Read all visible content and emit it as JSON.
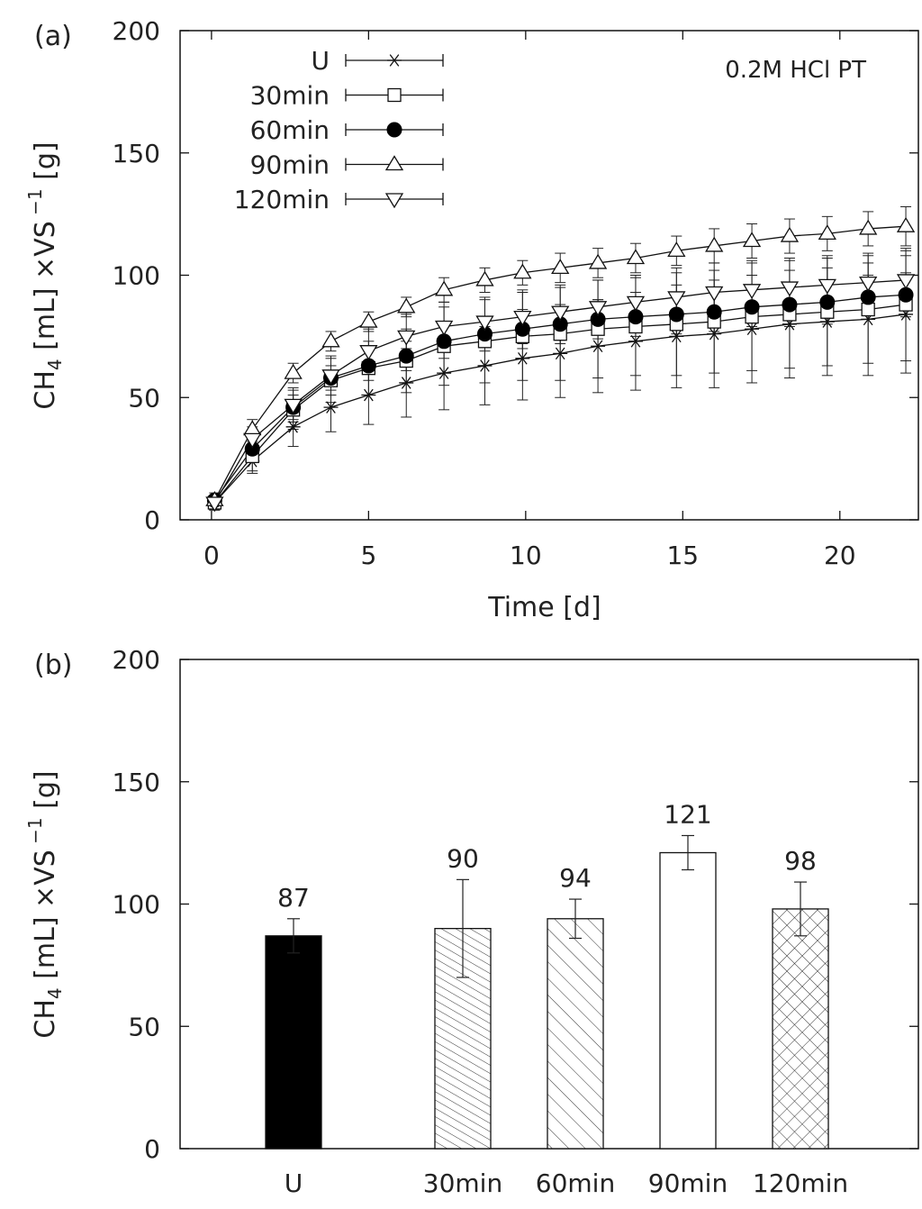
{
  "chart_data": [
    {
      "type": "line",
      "panel_label": "(a)",
      "annotation": "0.2M HCl PT",
      "xlabel": "Time [d]",
      "ylabel": {
        "main": "CH",
        "sub": "4",
        "mid": " [mL] ×VS",
        "sup": " −1",
        "tail": " [g]"
      },
      "xlim": [
        -1,
        22.5
      ],
      "ylim": [
        0,
        200
      ],
      "x_ticks": [
        0,
        5,
        10,
        15,
        20
      ],
      "y_ticks": [
        0,
        50,
        100,
        150,
        200
      ],
      "x": [
        0.1,
        1.3,
        2.6,
        3.8,
        5.0,
        6.2,
        7.4,
        8.7,
        9.9,
        11.1,
        12.3,
        13.5,
        14.8,
        16.0,
        17.2,
        18.4,
        19.6,
        20.9,
        22.1
      ],
      "series": [
        {
          "name": "U",
          "marker": "asterisk",
          "values": [
            7,
            24,
            38,
            46,
            51,
            56,
            60,
            63,
            66,
            68,
            71,
            73,
            75,
            76,
            78,
            80,
            81,
            82,
            84
          ],
          "error": [
            3,
            5,
            8,
            10,
            12,
            14,
            15,
            16,
            17,
            18,
            19,
            20,
            21,
            22,
            22,
            22,
            22,
            23,
            24
          ]
        },
        {
          "name": "30min",
          "marker": "open-square",
          "values": [
            7,
            26,
            45,
            57,
            62,
            65,
            71,
            73,
            75,
            76,
            78,
            79,
            80,
            81,
            83,
            84,
            85,
            86,
            88
          ],
          "error": [
            3,
            6,
            8,
            9,
            11,
            13,
            16,
            17,
            18,
            19,
            20,
            20,
            21,
            21,
            22,
            22,
            22,
            22,
            23
          ]
        },
        {
          "name": "60min",
          "marker": "filled-circle",
          "values": [
            8,
            29,
            46,
            58,
            63,
            67,
            73,
            76,
            78,
            80,
            82,
            83,
            84,
            85,
            87,
            88,
            89,
            91,
            92
          ],
          "error": [
            3,
            4,
            5,
            5,
            6,
            6,
            7,
            7,
            8,
            8,
            8,
            8,
            8,
            8,
            8,
            9,
            9,
            9,
            9
          ]
        },
        {
          "name": "90min",
          "marker": "open-triangle-up",
          "values": [
            8,
            37,
            60,
            73,
            81,
            87,
            94,
            98,
            101,
            103,
            105,
            107,
            110,
            112,
            114,
            116,
            117,
            119,
            120
          ],
          "error": [
            2,
            4,
            4,
            4,
            4,
            4,
            5,
            5,
            5,
            6,
            6,
            6,
            6,
            7,
            7,
            7,
            7,
            7,
            8
          ]
        },
        {
          "name": "120min",
          "marker": "open-triangle-down",
          "values": [
            7,
            33,
            47,
            59,
            69,
            75,
            79,
            81,
            83,
            85,
            87,
            89,
            91,
            93,
            94,
            95,
            96,
            97,
            98
          ],
          "error": [
            3,
            5,
            7,
            8,
            9,
            9,
            10,
            10,
            11,
            11,
            11,
            11,
            12,
            12,
            12,
            12,
            12,
            12,
            12
          ]
        }
      ]
    },
    {
      "type": "bar",
      "panel_label": "(b)",
      "ylabel": {
        "main": "CH",
        "sub": "4",
        "mid": " [mL] ×VS",
        "sup": " −1",
        "tail": " [g]"
      },
      "ylim": [
        0,
        200
      ],
      "y_ticks": [
        0,
        50,
        100,
        150,
        200
      ],
      "categories": [
        "U",
        "30min",
        "60min",
        "90min",
        "120min"
      ],
      "values": [
        87,
        90,
        94,
        121,
        98
      ],
      "data_labels": [
        "87",
        "90",
        "94",
        "121",
        "98"
      ],
      "error": [
        7,
        20,
        8,
        7,
        11
      ],
      "fills": [
        "solid-black",
        "dense-diagonal-hatch",
        "diagonal-hatch",
        "white",
        "cross-hatch"
      ],
      "colors": {
        "bar_stroke": "#111111",
        "solid": "#000000"
      }
    }
  ]
}
